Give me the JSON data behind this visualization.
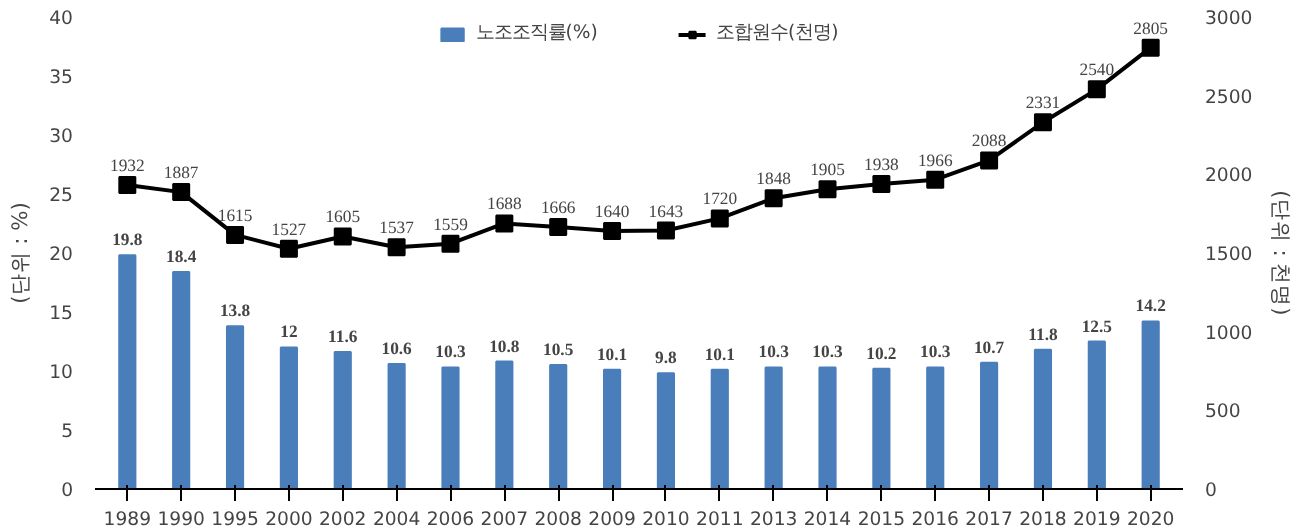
{
  "chart_data": {
    "type": "bar",
    "categories": [
      "1989",
      "1990",
      "1995",
      "2000",
      "2002",
      "2004",
      "2006",
      "2007",
      "2008",
      "2009",
      "2010",
      "2011",
      "2013",
      "2014",
      "2015",
      "2016",
      "2017",
      "2018",
      "2019",
      "2020"
    ],
    "series": [
      {
        "name": "노조조직률(%)",
        "color": "#4a7ebb",
        "values": [
          19.8,
          18.4,
          13.8,
          12,
          11.6,
          10.6,
          10.3,
          10.8,
          10.5,
          10.1,
          9.8,
          10.1,
          10.3,
          10.3,
          10.2,
          10.3,
          10.7,
          11.8,
          12.5,
          14.2
        ]
      },
      {
        "name": "조합원수(천명)",
        "type": "line",
        "axis": "y2",
        "color": "#000000",
        "marker": "square",
        "values": [
          1932,
          1887,
          1615,
          1527,
          1605,
          1537,
          1559,
          1688,
          1666,
          1640,
          1643,
          1720,
          1848,
          1905,
          1938,
          1966,
          2088,
          2331,
          2540,
          2805
        ]
      }
    ],
    "ylabel": "(단위 : %)",
    "y2label": "(단위 : 천명)",
    "ylim": [
      0,
      40
    ],
    "yticks": [
      0,
      5,
      10,
      15,
      20,
      25,
      30,
      35,
      40
    ],
    "y2lim": [
      0,
      3000
    ],
    "y2ticks": [
      0,
      500,
      1000,
      1500,
      2000,
      2500,
      3000
    ],
    "data_labels": true,
    "legend": "top",
    "grid": false
  }
}
